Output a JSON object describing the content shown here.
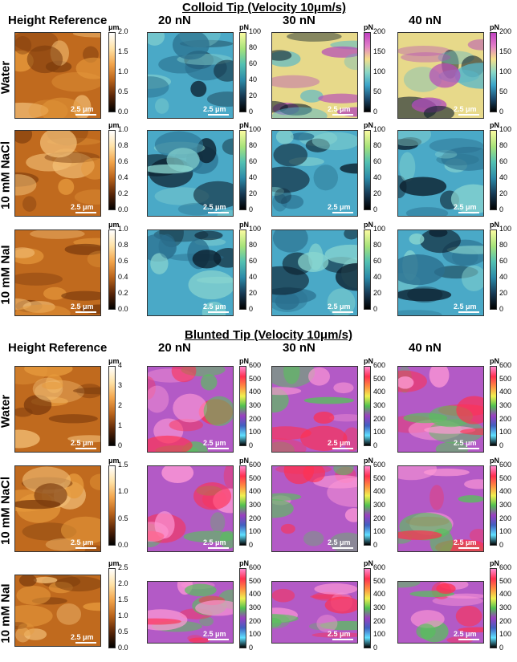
{
  "sections": [
    {
      "title": "Colloid Tip (Velocity 10μm/s)",
      "height_ref": "Height Reference",
      "forces": [
        "20 nN",
        "30 nN",
        "40 nN"
      ],
      "rows": [
        {
          "label": "Water",
          "height_ticks": [
            "2.0",
            "1.5",
            "1.0",
            "0.5",
            "0.0"
          ],
          "force_scales": [
            [
              "100",
              "80",
              "60",
              "40",
              "20",
              "0"
            ],
            [
              "200",
              "150",
              "100",
              "50",
              "0"
            ],
            [
              "200",
              "150",
              "100",
              "50",
              "0"
            ]
          ]
        },
        {
          "label": "10 mM NaCl",
          "height_ticks": [
            "1.0",
            "0.8",
            "0.6",
            "0.4",
            "0.2",
            "0.0"
          ],
          "force_scales": [
            [
              "100",
              "80",
              "60",
              "40",
              "20",
              "0"
            ],
            [
              "100",
              "80",
              "60",
              "40",
              "20",
              "0"
            ],
            [
              "100",
              "80",
              "60",
              "40",
              "20",
              "0"
            ]
          ]
        },
        {
          "label": "10 mM NaI",
          "height_ticks": [
            "1.0",
            "0.8",
            "0.6",
            "0.4",
            "0.2",
            "0.0"
          ],
          "force_scales": [
            [
              "100",
              "80",
              "60",
              "40",
              "20",
              "0"
            ],
            [
              "100",
              "80",
              "60",
              "40",
              "20",
              "0"
            ],
            [
              "100",
              "80",
              "60",
              "40",
              "20",
              "0"
            ]
          ]
        }
      ]
    },
    {
      "title": "Blunted Tip (Velocity 10μm/s)",
      "height_ref": "Height Reference",
      "forces": [
        "20 nN",
        "30 nN",
        "40 nN"
      ],
      "rows": [
        {
          "label": "Water",
          "height_ticks": [
            "4",
            "3",
            "2",
            "1",
            "0"
          ],
          "force_scales": [
            [
              "600",
              "500",
              "400",
              "300",
              "200",
              "100",
              "0"
            ],
            [
              "600",
              "500",
              "400",
              "300",
              "200",
              "100",
              "0"
            ],
            [
              "600",
              "500",
              "400",
              "300",
              "200",
              "100",
              "0"
            ]
          ]
        },
        {
          "label": "10 mM NaCl",
          "height_ticks": [
            "1.5",
            "1.0",
            "0.5",
            "0.0"
          ],
          "force_scales": [
            [
              "600",
              "500",
              "400",
              "300",
              "200",
              "100",
              "0"
            ],
            [
              "600",
              "500",
              "400",
              "300",
              "200",
              "100",
              "0"
            ],
            [
              "600",
              "500",
              "400",
              "300",
              "200",
              "100",
              "0"
            ]
          ]
        },
        {
          "label": "10 mM NaI",
          "height_ticks": [
            "2.5",
            "2.0",
            "1.5",
            "1.0",
            "0.5",
            "0.0"
          ],
          "force_scales": [
            [
              "600",
              "500",
              "400",
              "300",
              "200",
              "100",
              "0"
            ],
            [
              "600",
              "500",
              "400",
              "300",
              "200",
              "100",
              "0"
            ],
            [
              "600",
              "500",
              "400",
              "300",
              "200",
              "100",
              "0"
            ]
          ]
        }
      ]
    }
  ],
  "units": {
    "height": "μm",
    "force": "pN"
  },
  "scalebar": "2.5 μm",
  "colors": {
    "height_map": "afmhot",
    "colloid_force": "blue-cyan-yellow-magenta",
    "blunted_force": "rainbow-pink"
  }
}
